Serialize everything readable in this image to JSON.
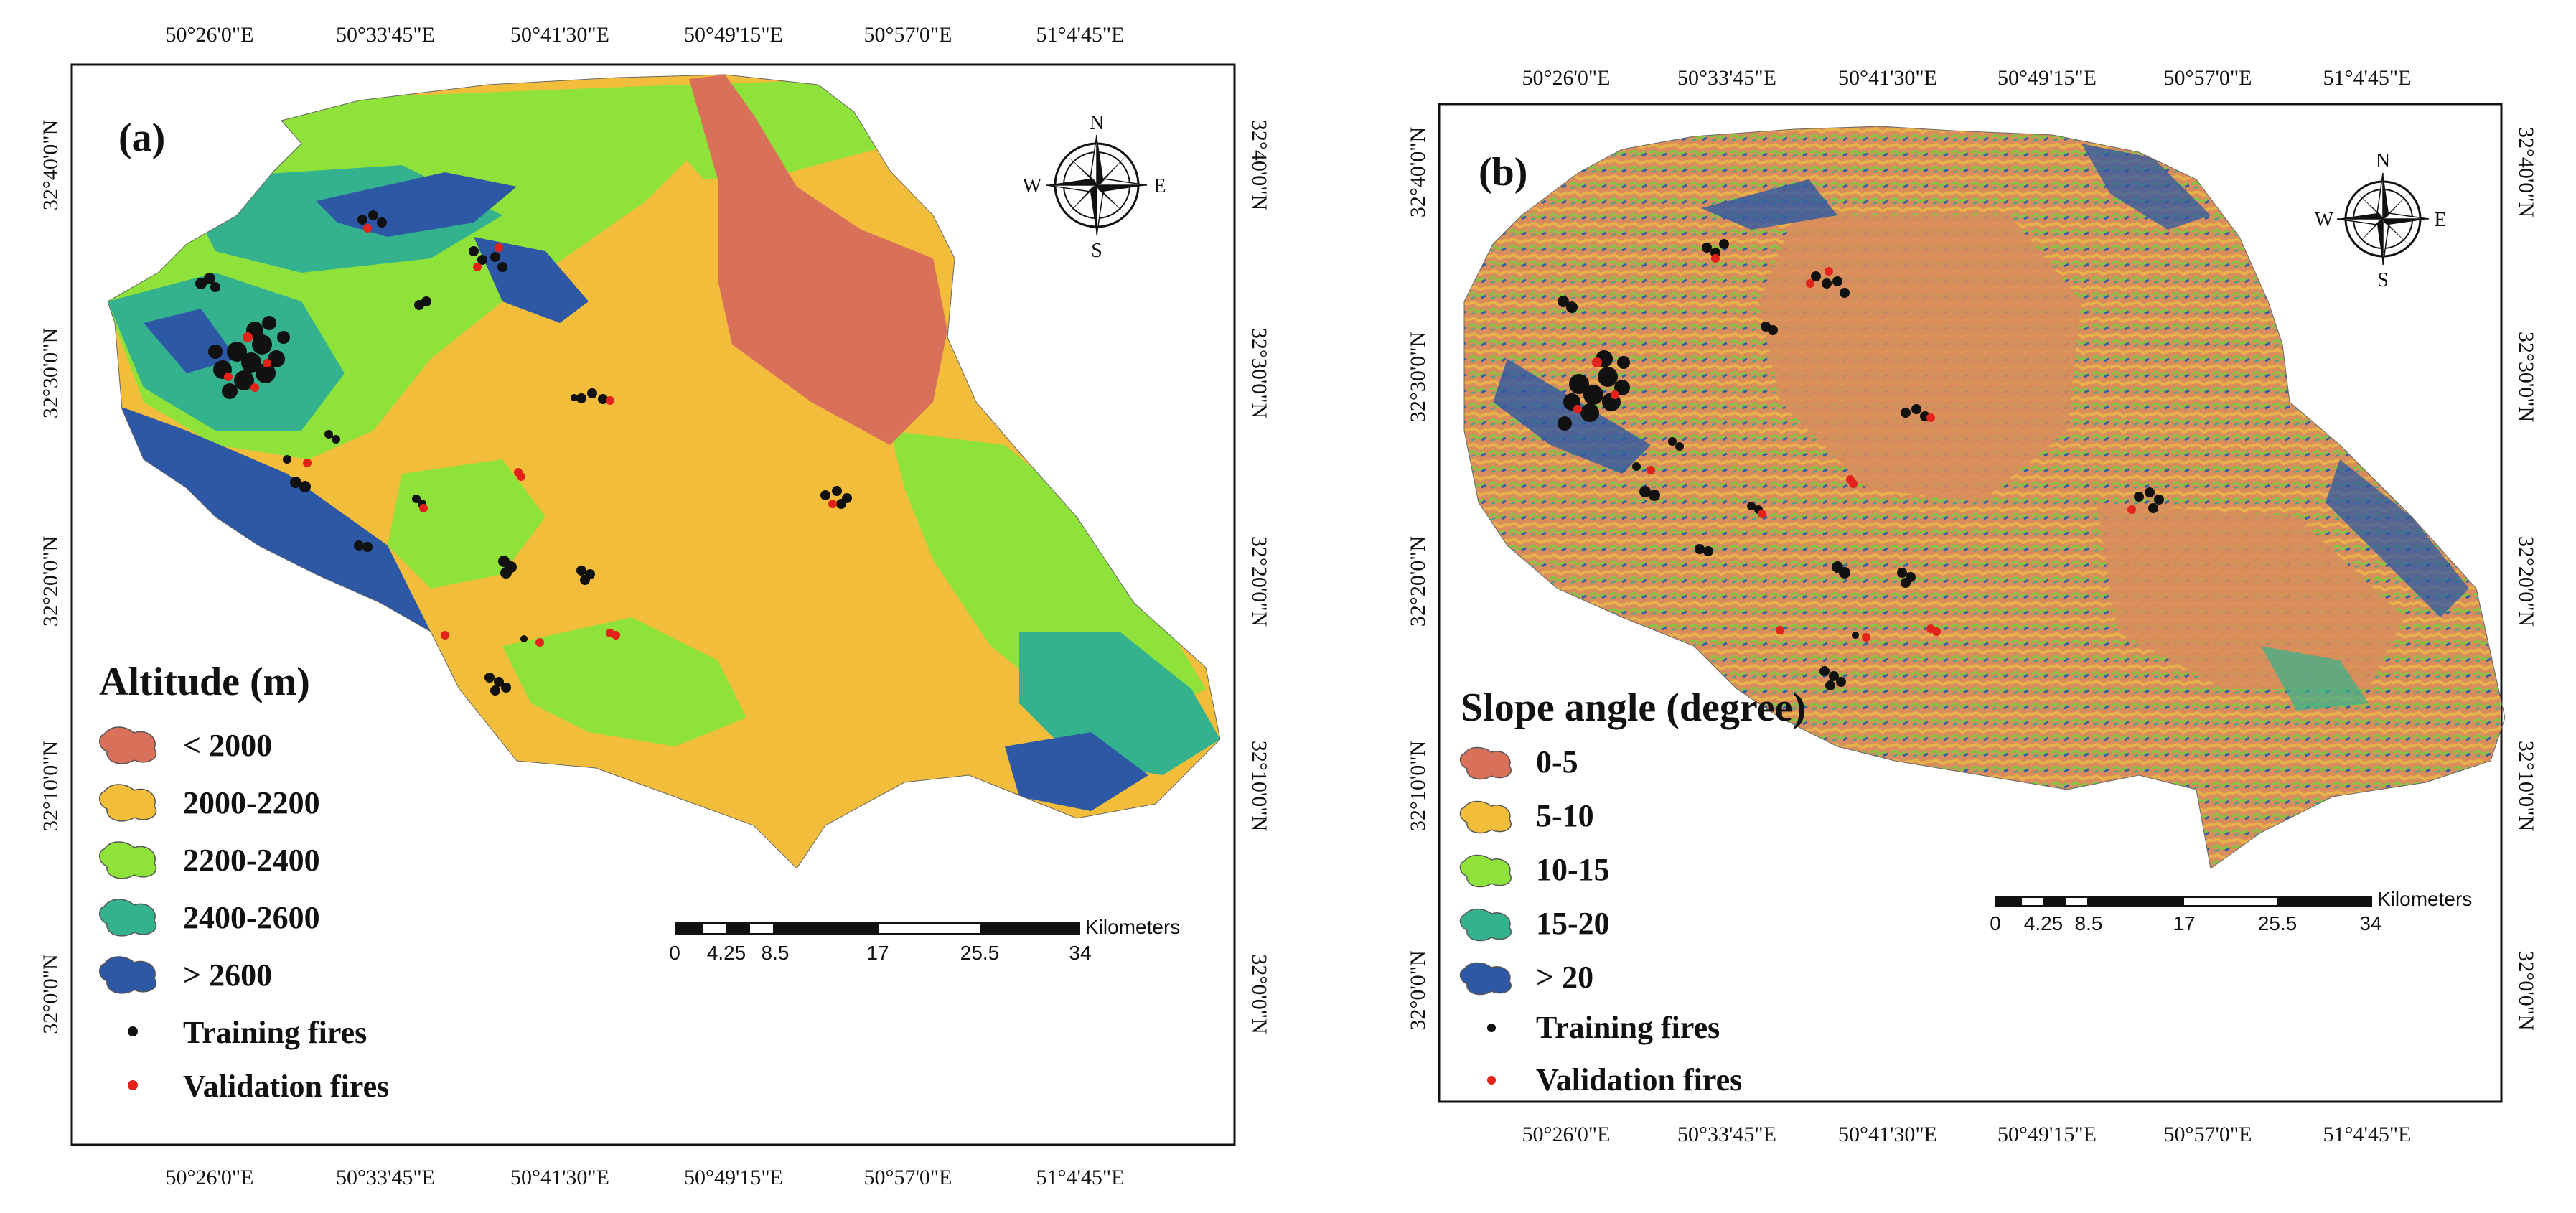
{
  "colors": {
    "lt2000": "#d9705a",
    "c2000_2200": "#f2bd3b",
    "c2200_2400": "#8ee23a",
    "c2400_2600": "#34b28e",
    "gt2600": "#2c58a6",
    "training_fire": "#111111",
    "validation_fire": "#e3231b"
  },
  "grid": {
    "lon_labels": [
      "50°26'0\"E",
      "50°33'45\"E",
      "50°41'30\"E",
      "50°49'15\"E",
      "50°57'0\"E",
      "51°4'45\"E"
    ],
    "lat_labels": [
      "32°40'0\"N",
      "32°30'0\"N",
      "32°20'0\"N",
      "32°10'0\"N",
      "32°0'0\"N"
    ]
  },
  "scale_bar": {
    "unit": "Kilometers",
    "ticks": [
      "0",
      "4.25",
      "8.5",
      "17",
      "25.5",
      "34"
    ]
  },
  "compass": {
    "n": "N",
    "s": "S",
    "e": "E",
    "w": "W"
  },
  "panel_a": {
    "label": "(a)",
    "legend_title": "Altitude (m)",
    "classes": [
      "< 2000",
      "2000-2200",
      "2200-2400",
      "2400-2600",
      "> 2600"
    ],
    "training_label": "Training fires",
    "validation_label": "Validation fires"
  },
  "panel_b": {
    "label": "(b)",
    "legend_title": "Slope angle (degree)",
    "classes": [
      "0-5",
      "5-10",
      "10-15",
      "15-20",
      "> 20"
    ],
    "training_label": "Training fires",
    "validation_label": "Validation fires"
  }
}
